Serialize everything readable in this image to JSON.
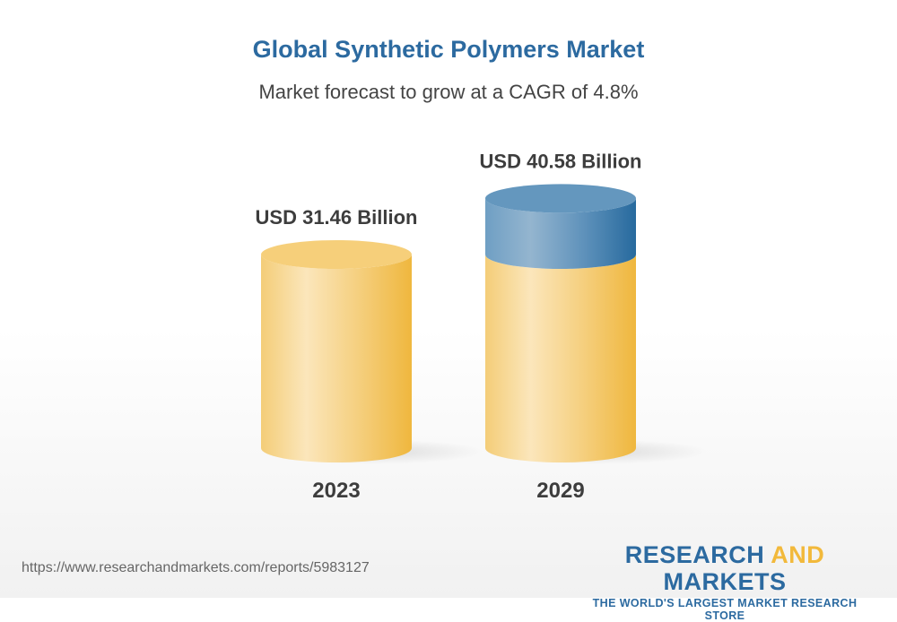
{
  "title": "Global Synthetic Polymers Market",
  "subtitle": "Market forecast to grow at a CAGR of 4.8%",
  "chart_data": {
    "type": "bar",
    "style": "3d-cylinder",
    "categories": [
      "2023",
      "2029"
    ],
    "values": [
      31.46,
      40.58
    ],
    "data_labels": [
      "USD 31.46 Billion",
      "USD 40.58 Billion"
    ],
    "unit": "USD Billion",
    "colors": {
      "base": "#f2b93b",
      "growth": "#2c6aa0"
    }
  },
  "footer": {
    "url": "https://www.researchandmarkets.com/reports/5983127",
    "logo_part1": "RESEARCH ",
    "logo_part2": "AND",
    "logo_part3": " MARKETS",
    "tagline": "THE WORLD'S LARGEST MARKET RESEARCH STORE"
  }
}
